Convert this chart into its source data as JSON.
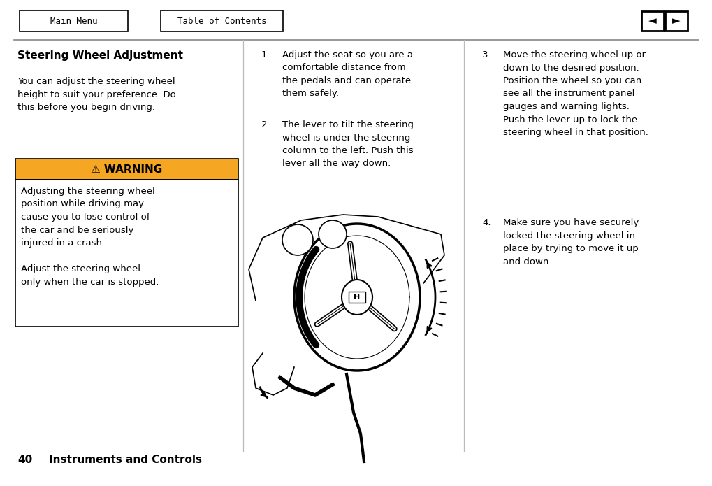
{
  "bg_color": "#ffffff",
  "nav_main_menu": "Main Menu",
  "nav_toc": "Table of Contents",
  "section_title": "Steering Wheel Adjustment",
  "intro_text": "You can adjust the steering wheel\nheight to suit your preference. Do\nthis before you begin driving.",
  "warning_title": "⚠ WARNING",
  "warning_color": "#F5A623",
  "warning_body": "Adjusting the steering wheel\nposition while driving may\ncause you to lose control of\nthe car and be seriously\ninjured in a crash.\n\nAdjust the steering wheel\nonly when the car is stopped.",
  "step1_num": "1.",
  "step1_text": "Adjust the seat so you are a\ncomfortable distance from\nthe pedals and can operate\nthem safely.",
  "step2_num": "2.",
  "step2_text": "The lever to tilt the steering\nwheel is under the steering\ncolumn to the left. Push this\nlever all the way down.",
  "step3_num": "3.",
  "step3_text": "Move the steering wheel up or\ndown to the desired position.\nPosition the wheel so you can\nsee all the instrument panel\ngauges and warning lights.\nPush the lever up to lock the\nsteering wheel in that position.",
  "step4_num": "4.",
  "step4_text": "Make sure you have securely\nlocked the steering wheel in\nplace by trying to move it up\nand down.",
  "footer_num": "40",
  "footer_text": "Instruments and Controls",
  "font_size_body": 9.5,
  "font_size_title": 11,
  "font_size_warn_title": 11,
  "font_size_footer": 11
}
